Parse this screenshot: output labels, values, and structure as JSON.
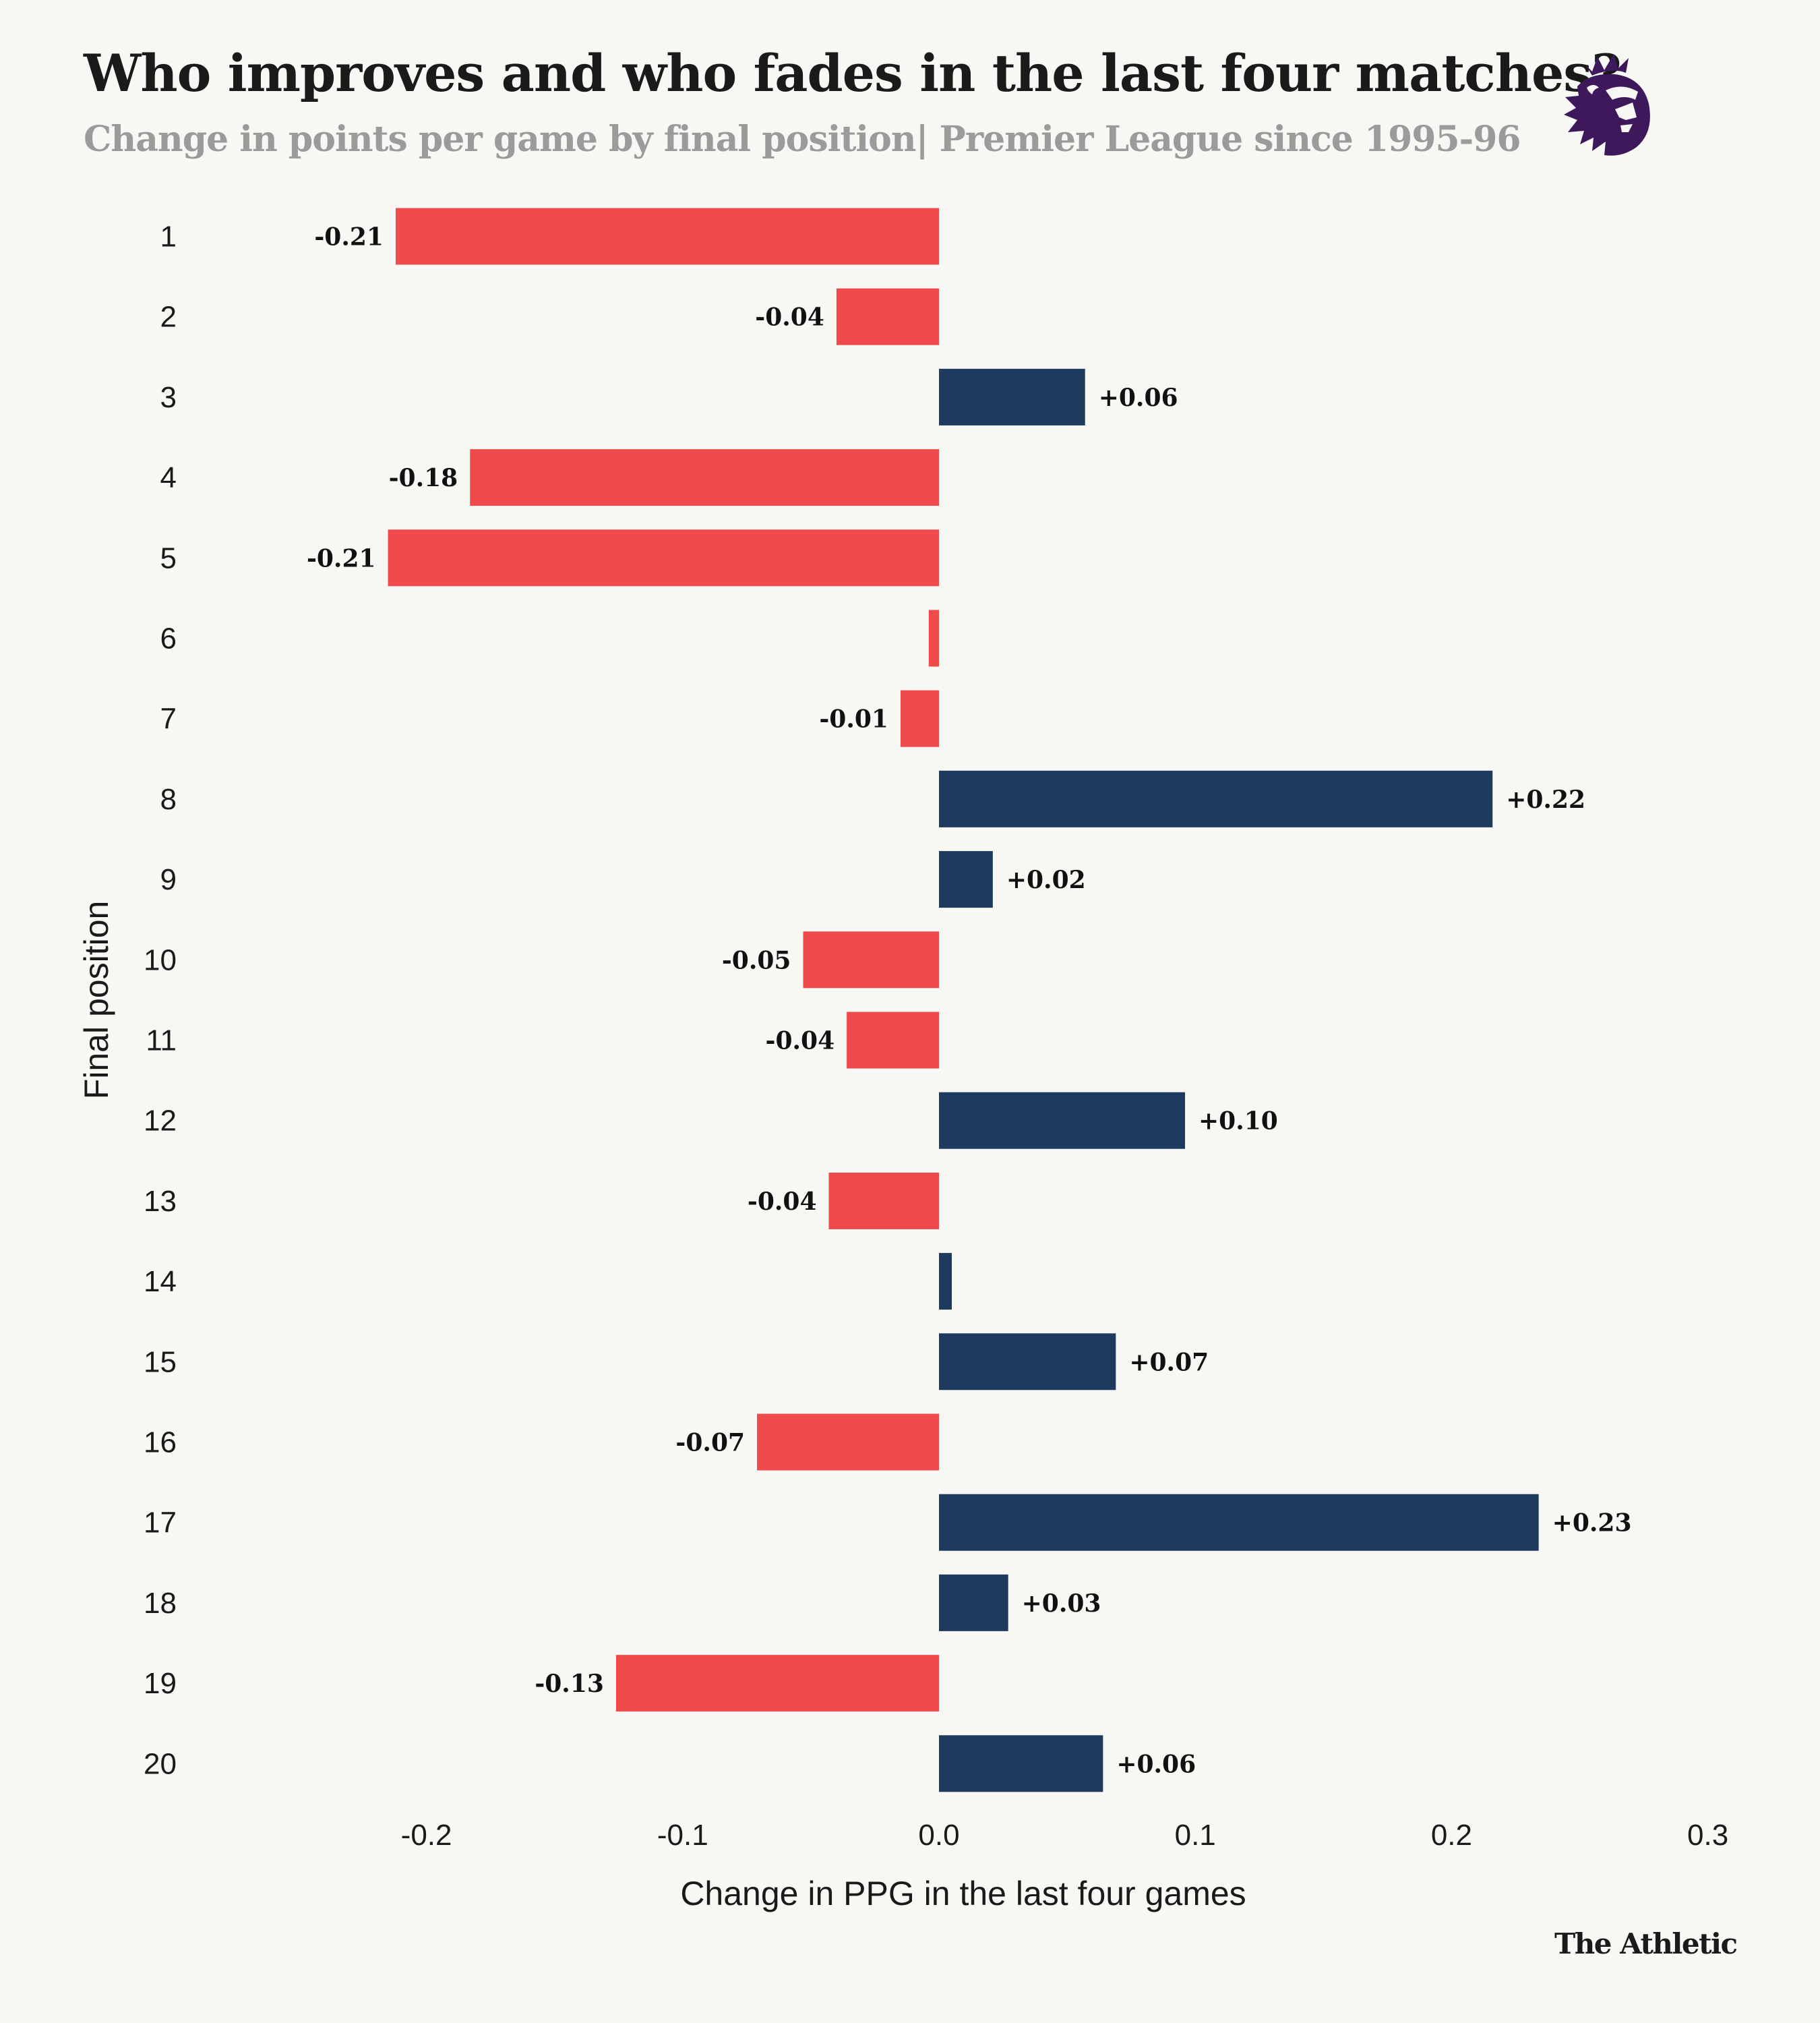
{
  "header": {
    "title": "Who improves and who fades in the last four matches?",
    "subtitle": "Change in points per game by final position| Premier League since 1995-96",
    "logo_icon": "premier-league-lion-icon"
  },
  "footer": {
    "brand": "The Athletic"
  },
  "colors": {
    "background": "#f7f7f3",
    "negative": "#f04b4c",
    "positive": "#1e3a5f",
    "logo": "#3d195b",
    "subtitle": "#9b9b9b"
  },
  "chart_data": {
    "type": "bar",
    "orientation": "horizontal",
    "title": "Who improves and who fades in the last four matches?",
    "subtitle": "Change in points per game by final position| Premier League since 1995-96",
    "xlabel": "Change in PPG in the last four games",
    "ylabel": "Final position",
    "xlim": [
      -0.28,
      0.3
    ],
    "xticks": [
      -0.2,
      -0.1,
      0.0,
      0.1,
      0.2,
      0.3
    ],
    "xtick_labels": [
      "-0.2",
      "-0.1",
      "0.0",
      "0.1",
      "0.2",
      "0.3"
    ],
    "grid": false,
    "legend": "none",
    "categories": [
      "1",
      "2",
      "3",
      "4",
      "5",
      "6",
      "7",
      "8",
      "9",
      "10",
      "11",
      "12",
      "13",
      "14",
      "15",
      "16",
      "17",
      "18",
      "19",
      "20"
    ],
    "values": [
      -0.212,
      -0.04,
      0.057,
      -0.183,
      -0.215,
      -0.004,
      -0.015,
      0.216,
      0.021,
      -0.053,
      -0.036,
      0.096,
      -0.043,
      0.005,
      0.069,
      -0.071,
      0.234,
      0.027,
      -0.126,
      0.064
    ],
    "data_labels": [
      "-0.21",
      "-0.04",
      "+0.06",
      "-0.18",
      "-0.21",
      "",
      "-0.01",
      "+0.22",
      "+0.02",
      "-0.05",
      "-0.04",
      "+0.10",
      "-0.04",
      "",
      "+0.07",
      "-0.07",
      "+0.23",
      "+0.03",
      "-0.13",
      "+0.06"
    ],
    "color_rule": "negative values red, positive values navy"
  }
}
